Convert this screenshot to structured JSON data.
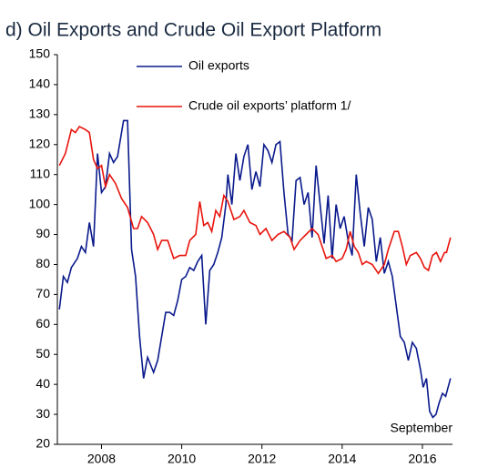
{
  "chart_data": {
    "type": "line",
    "title": "d) Oil Exports and Crude Oil Export Platform",
    "annotations": [
      "September"
    ],
    "xlim": [
      2006.9,
      2016.75
    ],
    "xticks": [
      2008,
      2010,
      2012,
      2014,
      2016
    ],
    "ylim": [
      20,
      150
    ],
    "yticks": [
      20,
      30,
      40,
      50,
      60,
      70,
      80,
      90,
      100,
      110,
      120,
      130,
      140,
      150
    ],
    "series": [
      {
        "name": "Oil exports",
        "color": "#0a1a8c",
        "x": [
          2006.95,
          2007.05,
          2007.15,
          2007.25,
          2007.4,
          2007.5,
          2007.6,
          2007.7,
          2007.8,
          2007.9,
          2008.0,
          2008.1,
          2008.2,
          2008.3,
          2008.4,
          2008.55,
          2008.65,
          2008.75,
          2008.85,
          2008.95,
          2009.05,
          2009.15,
          2009.3,
          2009.4,
          2009.6,
          2009.7,
          2009.8,
          2009.9,
          2010.0,
          2010.1,
          2010.2,
          2010.3,
          2010.4,
          2010.5,
          2010.6,
          2010.7,
          2010.8,
          2010.9,
          2011.0,
          2011.1,
          2011.15,
          2011.25,
          2011.35,
          2011.45,
          2011.55,
          2011.65,
          2011.75,
          2011.85,
          2011.95,
          2012.05,
          2012.15,
          2012.25,
          2012.35,
          2012.45,
          2012.55,
          2012.65,
          2012.75,
          2012.85,
          2012.95,
          2013.05,
          2013.15,
          2013.25,
          2013.35,
          2013.45,
          2013.55,
          2013.65,
          2013.75,
          2013.85,
          2013.95,
          2014.05,
          2014.15,
          2014.25,
          2014.35,
          2014.45,
          2014.55,
          2014.65,
          2014.75,
          2014.85,
          2014.95,
          2015.05,
          2015.15,
          2015.25,
          2015.35,
          2015.45,
          2015.55,
          2015.65,
          2015.75,
          2015.85,
          2015.95,
          2016.02,
          2016.1,
          2016.18,
          2016.26,
          2016.34,
          2016.42,
          2016.5,
          2016.58,
          2016.7
        ],
        "values": [
          65,
          76,
          74,
          79,
          82,
          86,
          84,
          94,
          86,
          117,
          104,
          106,
          117,
          114,
          116,
          128,
          128,
          85,
          76,
          56,
          42,
          49,
          44,
          48,
          64,
          64,
          63,
          68,
          75,
          76,
          79,
          78,
          81,
          83,
          60,
          78,
          80,
          84,
          89,
          100,
          110,
          100,
          117,
          108,
          116,
          120,
          105,
          111,
          106,
          120,
          118,
          114,
          120,
          121,
          104,
          90,
          88,
          108,
          109,
          100,
          104,
          89,
          113,
          100,
          87,
          103,
          82,
          100,
          92,
          96,
          88,
          83,
          110,
          97,
          86,
          99,
          95,
          81,
          89,
          77,
          81,
          76,
          66,
          56,
          54,
          48,
          54,
          52,
          45,
          39,
          42,
          31,
          29,
          30,
          34,
          37,
          36,
          42
        ]
      },
      {
        "name": "Crude oil exports’ platform 1/",
        "color": "#e8140c",
        "x": [
          2006.95,
          2007.1,
          2007.25,
          2007.35,
          2007.45,
          2007.6,
          2007.7,
          2007.8,
          2007.9,
          2008.0,
          2008.1,
          2008.2,
          2008.35,
          2008.5,
          2008.65,
          2008.8,
          2008.9,
          2009.0,
          2009.15,
          2009.3,
          2009.4,
          2009.5,
          2009.65,
          2009.8,
          2009.95,
          2010.1,
          2010.2,
          2010.35,
          2010.45,
          2010.55,
          2010.65,
          2010.75,
          2010.85,
          2010.95,
          2011.05,
          2011.15,
          2011.3,
          2011.45,
          2011.55,
          2011.7,
          2011.85,
          2011.95,
          2012.1,
          2012.25,
          2012.4,
          2012.55,
          2012.7,
          2012.8,
          2012.95,
          2013.1,
          2013.25,
          2013.4,
          2013.5,
          2013.6,
          2013.75,
          2013.85,
          2014.0,
          2014.1,
          2014.2,
          2014.3,
          2014.4,
          2014.5,
          2014.6,
          2014.75,
          2014.9,
          2015.05,
          2015.15,
          2015.3,
          2015.4,
          2015.5,
          2015.6,
          2015.7,
          2015.85,
          2015.95,
          2016.05,
          2016.15,
          2016.25,
          2016.35,
          2016.45,
          2016.55,
          2016.6,
          2016.7
        ],
        "values": [
          113,
          117,
          125,
          124,
          126,
          125,
          124,
          115,
          112,
          113,
          106,
          110,
          107,
          102,
          99,
          92,
          92,
          96,
          94,
          90,
          85,
          88,
          88,
          82,
          83,
          83,
          88,
          90,
          101,
          93,
          94,
          91,
          98,
          96,
          103,
          101,
          95,
          96,
          98,
          94,
          93,
          90,
          92,
          88,
          90,
          91,
          89,
          85,
          88,
          90,
          92,
          90,
          86,
          82,
          83,
          81,
          82,
          85,
          91,
          86,
          84,
          80,
          81,
          80,
          77,
          80,
          85,
          91,
          91,
          86,
          80,
          83,
          84,
          82,
          79,
          78,
          83,
          84,
          81,
          84,
          84,
          89
        ]
      }
    ]
  }
}
